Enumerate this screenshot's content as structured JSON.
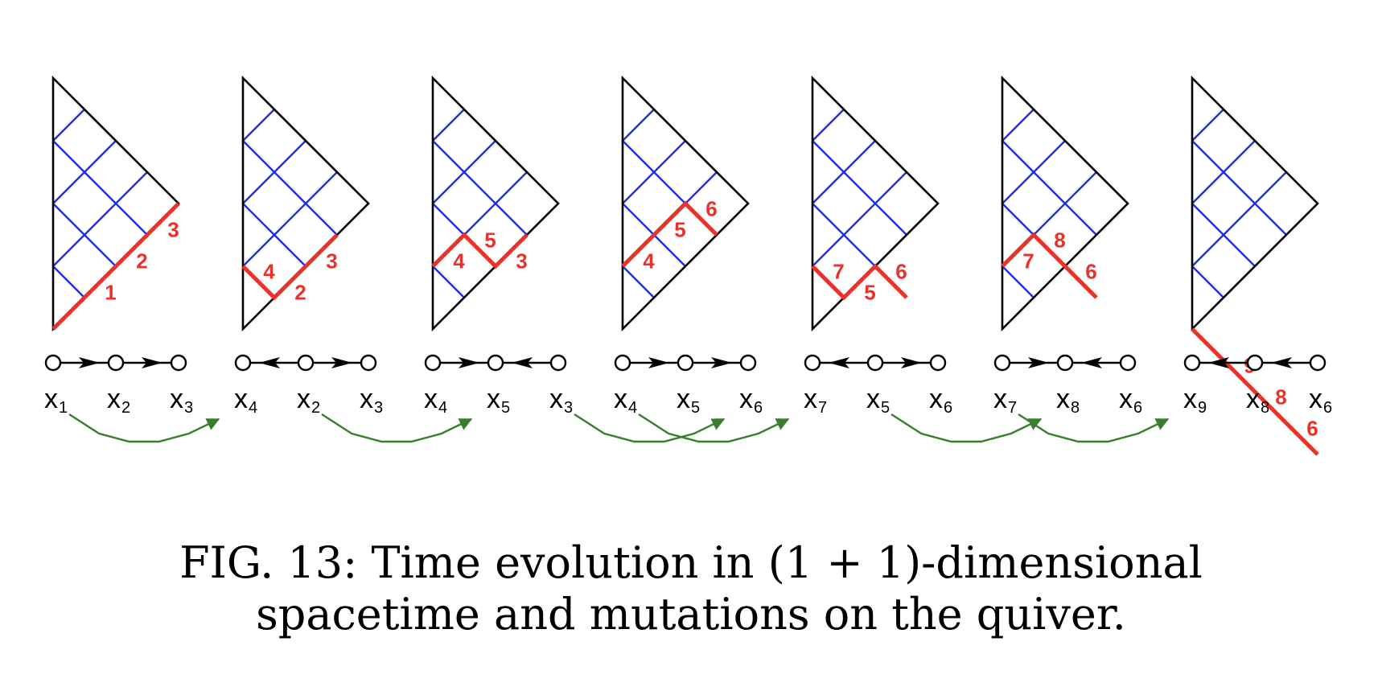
{
  "colors": {
    "triangle": "#000000",
    "grid": "#1f2fe0",
    "front": "#e8332b",
    "quiver": "#000000",
    "mutation": "#3a7d2e"
  },
  "panels": [
    {
      "index": 1,
      "front": "cccc",
      "labels": [
        "1",
        "2",
        "3"
      ],
      "quiver": {
        "nodes": [
          {
            "letter": "x",
            "sub": "1"
          },
          {
            "letter": "x",
            "sub": "2"
          },
          {
            "letter": "x",
            "sub": "3"
          }
        ],
        "arrows": [
          "right",
          "right"
        ]
      }
    },
    {
      "index": 2,
      "front": "acc",
      "labels": [
        "4",
        "2",
        "3"
      ],
      "quiver": {
        "nodes": [
          {
            "letter": "x",
            "sub": "4"
          },
          {
            "letter": "x",
            "sub": "2"
          },
          {
            "letter": "x",
            "sub": "3"
          }
        ],
        "arrows": [
          "left",
          "right"
        ]
      }
    },
    {
      "index": 3,
      "front": "cac",
      "labels": [
        "4",
        "5",
        "3"
      ],
      "quiver": {
        "nodes": [
          {
            "letter": "x",
            "sub": "4"
          },
          {
            "letter": "x",
            "sub": "5"
          },
          {
            "letter": "x",
            "sub": "3"
          }
        ],
        "arrows": [
          "right",
          "left"
        ]
      }
    },
    {
      "index": 4,
      "front": "cca",
      "labels": [
        "4",
        "5",
        "6"
      ],
      "quiver": {
        "nodes": [
          {
            "letter": "x",
            "sub": "4"
          },
          {
            "letter": "x",
            "sub": "5"
          },
          {
            "letter": "x",
            "sub": "6"
          }
        ],
        "arrows": [
          "right",
          "right"
        ]
      }
    },
    {
      "index": 5,
      "front": "aca",
      "labels": [
        "7",
        "5",
        "6"
      ],
      "quiver": {
        "nodes": [
          {
            "letter": "x",
            "sub": "7"
          },
          {
            "letter": "x",
            "sub": "5"
          },
          {
            "letter": "x",
            "sub": "6"
          }
        ],
        "arrows": [
          "left",
          "right"
        ]
      }
    },
    {
      "index": 6,
      "front": "caa",
      "labels": [
        "7",
        "8",
        "6"
      ],
      "quiver": {
        "nodes": [
          {
            "letter": "x",
            "sub": "7"
          },
          {
            "letter": "x",
            "sub": "8"
          },
          {
            "letter": "x",
            "sub": "6"
          }
        ],
        "arrows": [
          "right",
          "left"
        ]
      }
    },
    {
      "index": 7,
      "front": "aaaa",
      "labels": [
        "9",
        "8",
        "6"
      ],
      "quiver": {
        "nodes": [
          {
            "letter": "x",
            "sub": "9"
          },
          {
            "letter": "x",
            "sub": "8"
          },
          {
            "letter": "x",
            "sub": "6"
          }
        ],
        "arrows": [
          "left",
          "left"
        ]
      }
    }
  ],
  "mutations": [
    {
      "from_panel": 1,
      "from_node": 1,
      "to_panel": 2,
      "to_node": 1
    },
    {
      "from_panel": 2,
      "from_node": 2,
      "to_panel": 3,
      "to_node": 2
    },
    {
      "from_panel": 3,
      "from_node": 3,
      "to_panel": 4,
      "to_node": 3
    },
    {
      "from_panel": 4,
      "from_node": 1,
      "to_panel": 5,
      "to_node": 1
    },
    {
      "from_panel": 5,
      "from_node": 2,
      "to_panel": 6,
      "to_node": 2
    },
    {
      "from_panel": 6,
      "from_node": 1,
      "to_panel": 7,
      "to_node": 1
    }
  ],
  "caption": {
    "line1": "FIG. 13:  Time evolution in (1 + 1)-dimensional",
    "line2": "spacetime and mutations on the quiver."
  }
}
